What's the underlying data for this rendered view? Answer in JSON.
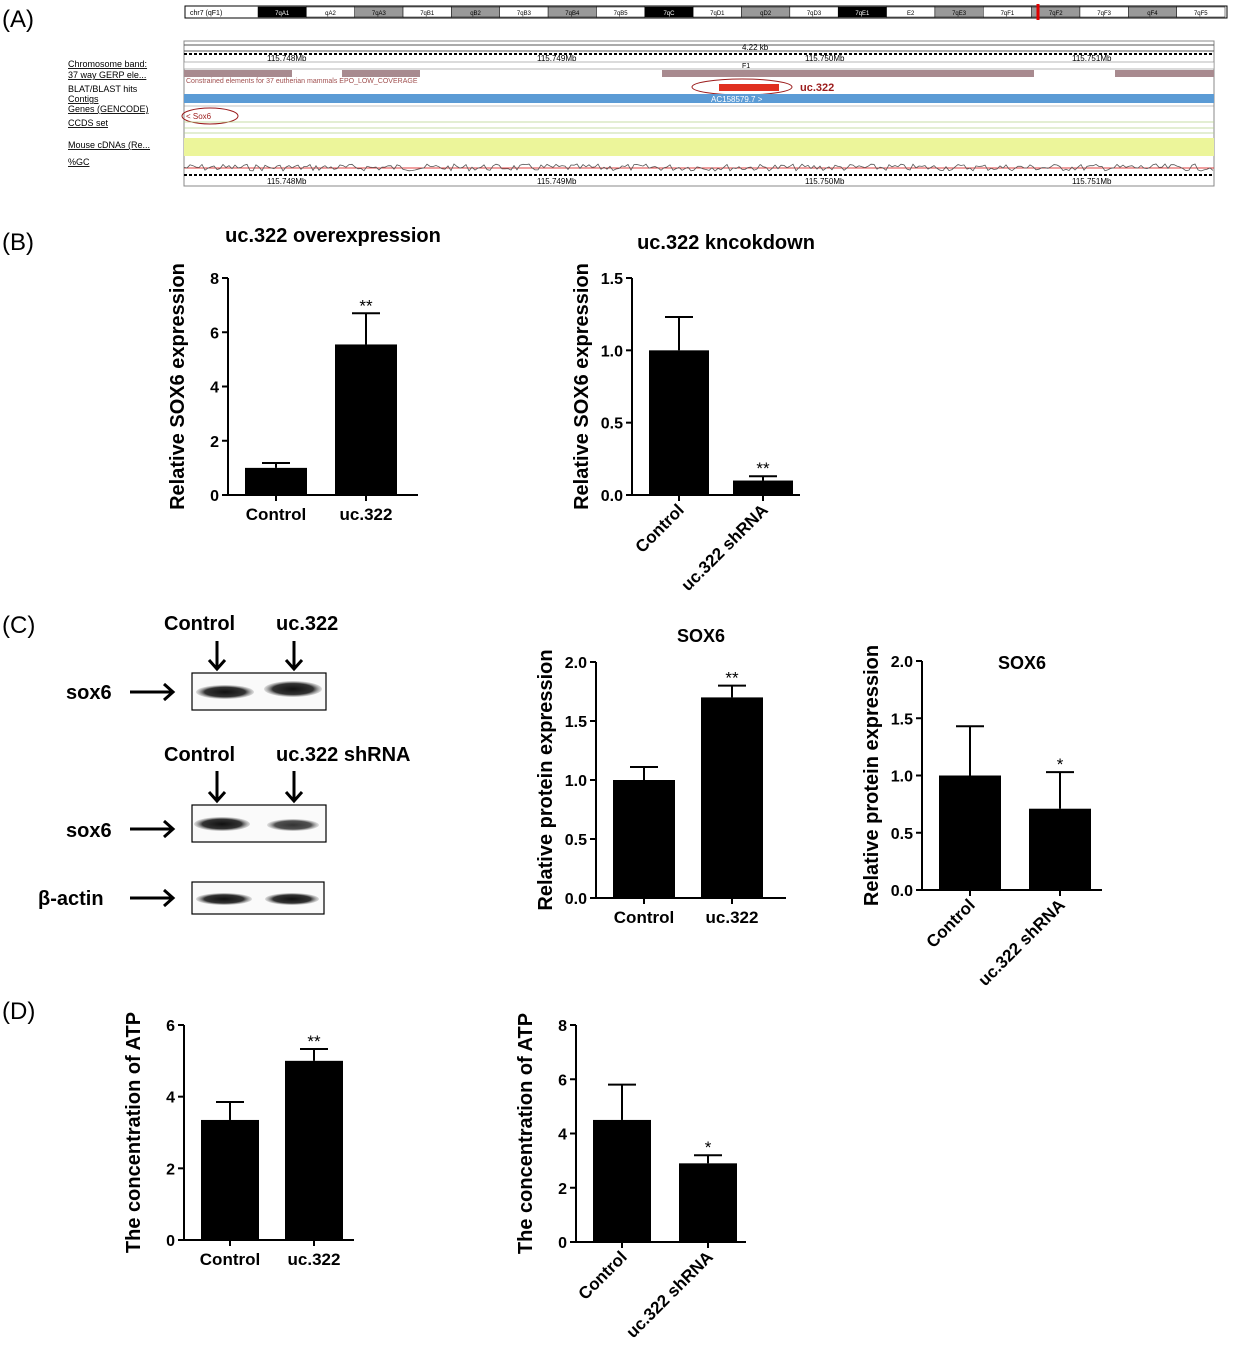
{
  "panels": {
    "A": "(A)",
    "B": "(B)",
    "C": "(C)",
    "D": "(D)"
  },
  "genome": {
    "chrom_label": "chr7 (qF1)",
    "ideogram_bands": [
      "7qA1",
      "qA2",
      "7qA3",
      "7qB1",
      "qB2",
      "7qB3",
      "7qB4",
      "7qB5",
      "7qC",
      "7qD1",
      "qD2",
      "7qD3",
      "7qE1",
      "E2",
      "7qE3",
      "7qF1",
      "7qF2",
      "7qF3",
      "qF4",
      "7qF5"
    ],
    "scale_label": "4.22 kb",
    "coords": [
      "115.748Mb",
      "115.749Mb",
      "115.750Mb",
      "115.751Mb"
    ],
    "band_name": "F1",
    "track_labels": [
      "Chromosome band:",
      "37 way GERP ele...",
      "BLAT/BLAST hits",
      "Contigs",
      "Genes (GENCODE)",
      "CCDS set",
      "Mouse cDNAs (Re...",
      "%GC"
    ],
    "constrained_text": "Constrained elements for 37 eutherian mammals EPO_LOW_COVERAGE",
    "blat_label": "uc.322",
    "contig_label": "AC158579.7 >",
    "gene_label": "< Sox6",
    "colors": {
      "gerp": "#a88a8f",
      "contig": "#5b9bd5",
      "cdna": "#ecf59a",
      "blat": "#e03020",
      "circle": "#9b1b1b"
    }
  },
  "blots": {
    "top_lane1": "Control",
    "top_lane2": "uc.322",
    "mid_lane1": "Control",
    "mid_lane2": "uc.322 shRNA",
    "row1": "sox6",
    "row2": "sox6",
    "row3": "β-actin"
  },
  "chart_data": [
    {
      "id": "b1",
      "type": "bar",
      "title": "uc.322 overexpression",
      "ylabel": "Relative SOX6 expression",
      "categories": [
        "Control",
        "uc.322"
      ],
      "values": [
        1.0,
        5.55
      ],
      "errors": [
        0.18,
        1.15
      ],
      "sig": [
        "",
        "**"
      ],
      "ylim": [
        0,
        8
      ],
      "ticks": [
        "0",
        "2",
        "4",
        "6",
        "8"
      ],
      "xlabel_rotated": false
    },
    {
      "id": "b2",
      "type": "bar",
      "title": "uc.322 kncokdown",
      "ylabel": "Relative SOX6 expression",
      "categories": [
        "Control",
        "uc.322 shRNA"
      ],
      "values": [
        1.0,
        0.1
      ],
      "errors": [
        0.23,
        0.03
      ],
      "sig": [
        "",
        "**"
      ],
      "ylim": [
        0,
        1.5
      ],
      "ticks": [
        "0.0",
        "0.5",
        "1.0",
        "1.5"
      ],
      "xlabel_rotated": true
    },
    {
      "id": "c1",
      "type": "bar",
      "title": "SOX6",
      "ylabel": "Relative protein expression",
      "categories": [
        "Control",
        "uc.322"
      ],
      "values": [
        1.0,
        1.7
      ],
      "errors": [
        0.11,
        0.1
      ],
      "sig": [
        "",
        "**"
      ],
      "ylim": [
        0,
        2.0
      ],
      "ticks": [
        "0.0",
        "0.5",
        "1.0",
        "1.5",
        "2.0"
      ],
      "xlabel_rotated": false
    },
    {
      "id": "c2",
      "type": "bar",
      "title": "SOX6",
      "ylabel": "Relative protein expression",
      "categories": [
        "Control",
        "uc.322 shRNA"
      ],
      "values": [
        1.0,
        0.71
      ],
      "errors": [
        0.43,
        0.32
      ],
      "sig": [
        "",
        "*"
      ],
      "ylim": [
        0,
        2.0
      ],
      "ticks": [
        "0.0",
        "0.5",
        "1.0",
        "1.5",
        "2.0"
      ],
      "xlabel_rotated": true
    },
    {
      "id": "d1",
      "type": "bar",
      "title": "",
      "ylabel": "The concentration of ATP",
      "categories": [
        "Control",
        "uc.322"
      ],
      "values": [
        3.35,
        5.0
      ],
      "errors": [
        0.5,
        0.33
      ],
      "sig": [
        "",
        "**"
      ],
      "ylim": [
        0,
        6
      ],
      "ticks": [
        "0",
        "2",
        "4",
        "6"
      ],
      "xlabel_rotated": false
    },
    {
      "id": "d2",
      "type": "bar",
      "title": "",
      "ylabel": "The concentration of ATP",
      "categories": [
        "Control",
        "uc.322 shRNA"
      ],
      "values": [
        4.5,
        2.9
      ],
      "errors": [
        1.3,
        0.3
      ],
      "sig": [
        "",
        "*"
      ],
      "ylim": [
        0,
        8
      ],
      "ticks": [
        "0",
        "2",
        "4",
        "6",
        "8"
      ],
      "xlabel_rotated": true
    }
  ]
}
